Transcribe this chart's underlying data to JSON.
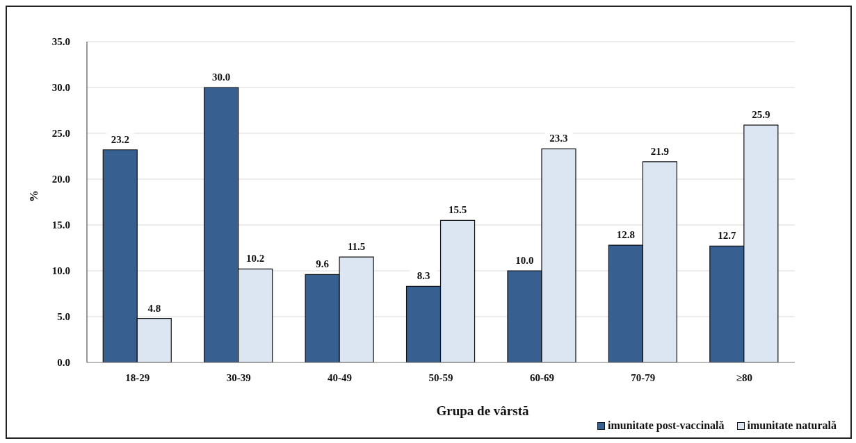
{
  "chart_data": {
    "type": "bar",
    "xlabel": "Grupa  de vârstă",
    "ylabel": "%",
    "categories": [
      "18-29",
      "30-39",
      "40-49",
      "50-59",
      "60-69",
      "70-79",
      "≥80"
    ],
    "series": [
      {
        "name": "imunitate post-vaccinală",
        "color": "#375f8f",
        "values": [
          23.2,
          30.0,
          9.6,
          8.3,
          10.0,
          12.8,
          12.7
        ],
        "value_labels": [
          "23.2",
          "30.0",
          "9.6",
          "8.3",
          "10.0",
          "12.8",
          "12.7"
        ]
      },
      {
        "name": "imunitate naturală",
        "color": "#dce6f2",
        "values": [
          4.8,
          10.2,
          11.5,
          15.5,
          23.3,
          21.9,
          25.9
        ],
        "value_labels": [
          "4.8",
          "10.2",
          "11.5",
          "15.5",
          "23.3",
          "21.9",
          "25.9"
        ]
      }
    ],
    "ylim": [
      0,
      35
    ],
    "yticks": [
      {
        "value": 0,
        "label": "0.0"
      },
      {
        "value": 5,
        "label": "5.0"
      },
      {
        "value": 10,
        "label": "10.0"
      },
      {
        "value": 15,
        "label": "15.0"
      },
      {
        "value": 20,
        "label": "20.0"
      },
      {
        "value": 25,
        "label": "25.0"
      },
      {
        "value": 30,
        "label": "30.0"
      },
      {
        "value": 35,
        "label": "35.0"
      }
    ],
    "grid": "y",
    "legend": "bottom right"
  }
}
